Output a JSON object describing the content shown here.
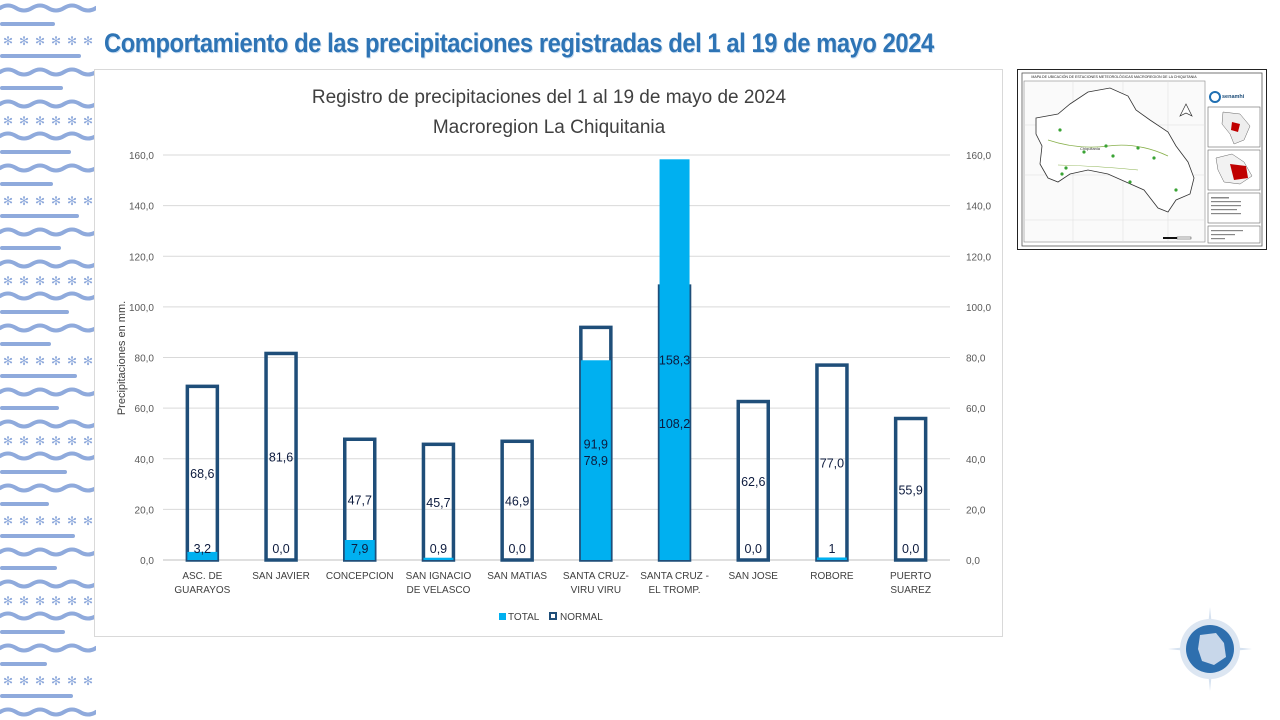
{
  "slide": {
    "title": "Comportamiento de las precipitaciones registradas del 1 al 19 de mayo 2024"
  },
  "colors": {
    "title": "#2e74b5",
    "total_bar": "#00b0f0",
    "normal_bar": "#1f4e79",
    "decoration": "#8faadc"
  },
  "map": {
    "title": "MAPA DE UBICACIÓN DE ESTACIONES METEOROLÓGICAS MACROREGION DE LA CHIQUITANIA",
    "brand": "senamhi",
    "region_label": "Chiquitania"
  },
  "chart_data": {
    "type": "bar",
    "title": "Registro de precipitaciones del 1 al 19 de mayo de 2024",
    "subtitle": "Macroregion La Chiquitania",
    "ylabel": "Precipitaciones en mm.",
    "ylim": [
      0,
      160
    ],
    "yticks": [
      "0,0",
      "20,0",
      "40,0",
      "60,0",
      "80,0",
      "100,0",
      "120,0",
      "140,0",
      "160,0"
    ],
    "grid": true,
    "legend_position": "bottom",
    "categories": [
      [
        "ASC. DE",
        "GUARAYOS"
      ],
      [
        "SAN JAVIER"
      ],
      [
        "CONCEPCION"
      ],
      [
        "SAN IGNACIO",
        "DE VELASCO"
      ],
      [
        "SAN MATIAS"
      ],
      [
        "SANTA CRUZ-",
        "VIRU VIRU"
      ],
      [
        "SANTA CRUZ -",
        "EL TROMP."
      ],
      [
        "SAN JOSE"
      ],
      [
        "ROBORE"
      ],
      [
        "PUERTO",
        "SUAREZ"
      ]
    ],
    "series": [
      {
        "name": "TOTAL",
        "values": [
          3.2,
          0.0,
          7.9,
          0.9,
          0.0,
          78.9,
          158.3,
          0.0,
          1,
          0.0
        ],
        "labels": [
          "3,2",
          "0,0",
          "7,9",
          "0,9",
          "0,0",
          "78,9",
          "158,3",
          "0,0",
          "1",
          "0,0"
        ]
      },
      {
        "name": "NORMAL",
        "values": [
          68.6,
          81.6,
          47.7,
          45.7,
          46.9,
          91.9,
          108.2,
          62.6,
          77.0,
          55.9
        ],
        "labels": [
          "68,6",
          "81,6",
          "47,7",
          "45,7",
          "46,9",
          "91,9",
          "108,2",
          "62,6",
          "77,0",
          "55,9"
        ]
      }
    ]
  }
}
